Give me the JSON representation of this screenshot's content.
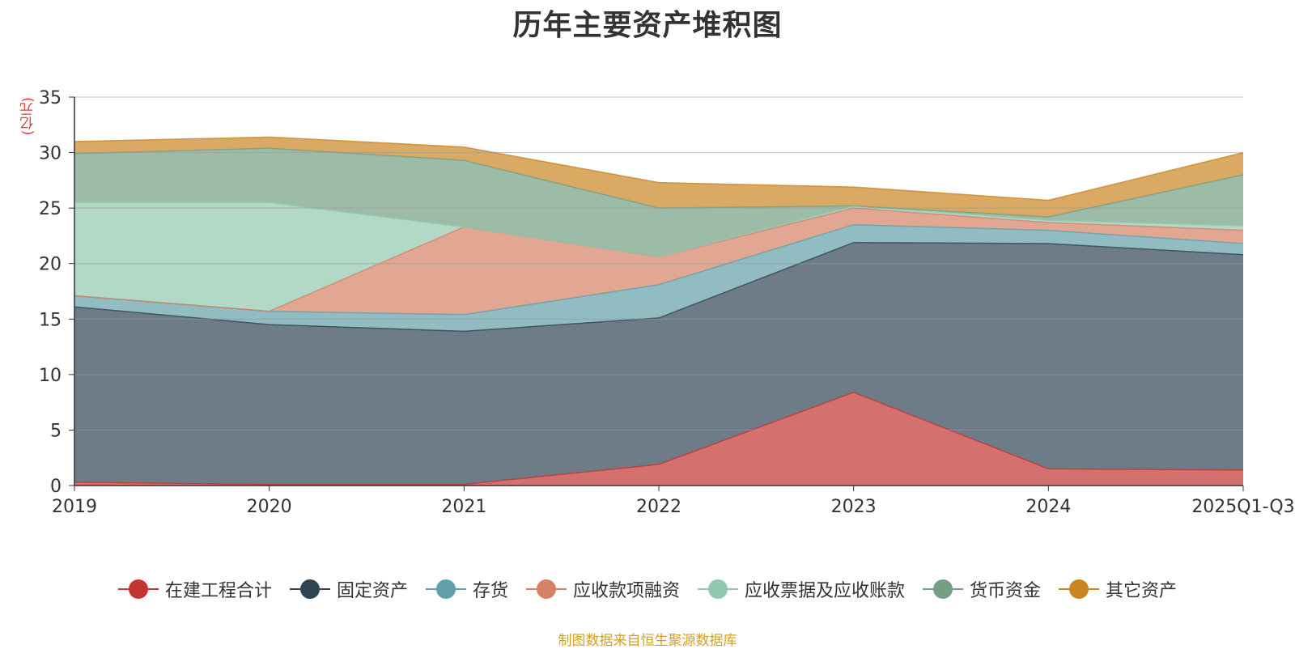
{
  "title": "历年主要资产堆积图",
  "unit_label": "(亿元)",
  "source": "制图数据来自恒生聚源数据库",
  "chart_data": {
    "type": "area",
    "stacked": true,
    "title": "历年主要资产堆积图",
    "ylabel": "(亿元)",
    "ylim": [
      0,
      35
    ],
    "yticks": [
      0,
      5,
      10,
      15,
      20,
      25,
      30,
      35
    ],
    "categories": [
      "2019",
      "2020",
      "2021",
      "2022",
      "2023",
      "2024",
      "2025Q1-Q3"
    ],
    "grid": true,
    "legend": "bottom",
    "series": [
      {
        "name": "在建工程合计",
        "color": "#c23531",
        "values": [
          0.3,
          0.1,
          0.1,
          1.9,
          8.4,
          1.5,
          1.4
        ]
      },
      {
        "name": "固定资产",
        "color": "#2f4554",
        "values": [
          15.8,
          14.4,
          13.8,
          13.2,
          13.5,
          20.3,
          19.4
        ]
      },
      {
        "name": "存货",
        "color": "#61a0a8",
        "values": [
          1.0,
          1.2,
          1.5,
          3.0,
          1.6,
          1.2,
          1.0
        ]
      },
      {
        "name": "应收款项融资",
        "color": "#d48265",
        "values": [
          0.0,
          0.0,
          7.9,
          2.5,
          1.5,
          0.7,
          1.2
        ]
      },
      {
        "name": "应收票据及应收账款",
        "color": "#91c7ae",
        "values": [
          8.4,
          9.8,
          0.0,
          0.0,
          0.2,
          0.2,
          0.4
        ]
      },
      {
        "name": "货币资金",
        "color": "#749f83",
        "values": [
          4.4,
          4.9,
          6.0,
          4.4,
          0.0,
          0.3,
          4.6
        ]
      },
      {
        "name": "其它资产",
        "color": "#ca8622",
        "values": [
          1.1,
          1.0,
          1.2,
          2.3,
          1.7,
          1.5,
          2.0
        ]
      }
    ]
  }
}
